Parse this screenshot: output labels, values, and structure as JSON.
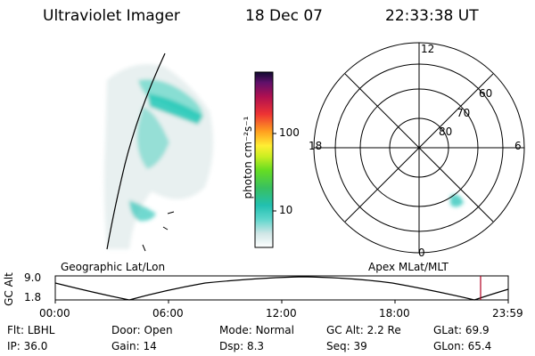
{
  "header": {
    "instrument": "Ultraviolet Imager",
    "date": "18 Dec 07",
    "time": "22:33:38 UT"
  },
  "colorbar": {
    "unit": "photon cm⁻²s⁻¹",
    "ticks": [
      "100",
      "10"
    ]
  },
  "polar": {
    "lat_labels": [
      "80",
      "70",
      "60"
    ],
    "mlt_labels": {
      "top": "12",
      "left": "18",
      "right": "6",
      "bottom": "0"
    }
  },
  "timeline": {
    "left_title": "Geographic Lat/Lon",
    "right_title": "Apex MLat/MLT",
    "ylabel": "GC Alt",
    "y_ticks": [
      "9.0",
      "1.8"
    ],
    "x_ticks": [
      "00:00",
      "06:00",
      "12:00",
      "18:00",
      "23:59"
    ]
  },
  "status": {
    "row1": [
      {
        "key": "Flt:",
        "val": "LBHL"
      },
      {
        "key": "Door:",
        "val": "Open"
      },
      {
        "key": "Mode:",
        "val": "Normal"
      },
      {
        "key": "GC Alt:",
        "val": "2.2 Re"
      },
      {
        "key": "GLat:",
        "val": "69.9"
      }
    ],
    "row2": [
      {
        "key": "IP:",
        "val": "36.0"
      },
      {
        "key": "Gain:",
        "val": "14"
      },
      {
        "key": "Dsp:",
        "val": "8.3"
      },
      {
        "key": "Seq:",
        "val": "39"
      },
      {
        "key": "GLon:",
        "val": "65.4"
      }
    ]
  }
}
